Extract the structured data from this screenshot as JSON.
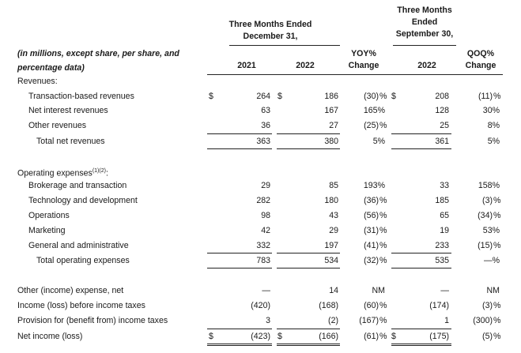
{
  "header": {
    "three_months_dec": "Three Months Ended December 31,",
    "three_months_sep": "Three Months Ended September 30,",
    "note": "(in millions, except share, per share, and percentage data)",
    "col_2021": "2021",
    "col_2022": "2022",
    "col_yoy": "YOY% Change",
    "col_sep_2022": "2022",
    "col_qoq": "QOQ% Change"
  },
  "sections": {
    "revenues": "Revenues:",
    "operating_expenses": "Operating expenses",
    "operating_expenses_sup": "(1)(2)",
    "operating_expenses_colon": ":"
  },
  "rows": [
    {
      "label": "Transaction-based revenues",
      "dol": true,
      "v2021": "264",
      "v2022": "186",
      "yoy": "(30)",
      "yoy_pct": "%",
      "dol_sep": true,
      "vsep": "208",
      "qoq": "(11)",
      "qoq_pct": "%"
    },
    {
      "label": "Net interest revenues",
      "v2021": "63",
      "v2022": "167",
      "yoy": "165%",
      "vsep": "128",
      "qoq": "30%"
    },
    {
      "label": "Other revenues",
      "v2021": "36",
      "v2022": "27",
      "yoy": "(25)",
      "yoy_pct": "%",
      "vsep": "25",
      "qoq": "8%"
    },
    {
      "label": "Total net revenues",
      "v2021": "363",
      "v2022": "380",
      "yoy": "5%",
      "vsep": "361",
      "qoq": "5%"
    },
    {
      "label": "Brokerage and transaction",
      "v2021": "29",
      "v2022": "85",
      "yoy": "193%",
      "vsep": "33",
      "qoq": "158%"
    },
    {
      "label": "Technology and development",
      "v2021": "282",
      "v2022": "180",
      "yoy": "(36)",
      "yoy_pct": "%",
      "vsep": "185",
      "qoq": "(3)",
      "qoq_pct": "%"
    },
    {
      "label": "Operations",
      "v2021": "98",
      "v2022": "43",
      "yoy": "(56)",
      "yoy_pct": "%",
      "vsep": "65",
      "qoq": "(34)",
      "qoq_pct": "%"
    },
    {
      "label": "Marketing",
      "v2021": "42",
      "v2022": "29",
      "yoy": "(31)",
      "yoy_pct": "%",
      "vsep": "19",
      "qoq": "53%"
    },
    {
      "label": "General and administrative",
      "v2021": "332",
      "v2022": "197",
      "yoy": "(41)",
      "yoy_pct": "%",
      "vsep": "233",
      "qoq": "(15)",
      "qoq_pct": "%"
    },
    {
      "label": "Total operating expenses",
      "v2021": "783",
      "v2022": "534",
      "yoy": "(32)",
      "yoy_pct": "%",
      "vsep": "535",
      "qoq": "—%"
    },
    {
      "label": "Other (income) expense, net",
      "v2021": "—",
      "v2022": "14",
      "yoy": "NM",
      "vsep": "—",
      "qoq": "NM"
    },
    {
      "label": "Income (loss) before income taxes",
      "v2021": "(420)",
      "v2022": "(168)",
      "yoy": "(60)",
      "yoy_pct": "%",
      "vsep": "(174)",
      "qoq": "(3)",
      "qoq_pct": "%"
    },
    {
      "label": "Provision for (benefit from) income taxes",
      "v2021": "3",
      "v2022": "(2)",
      "yoy": "(167)",
      "yoy_pct": "%",
      "vsep": "1",
      "qoq": "(300)",
      "qoq_pct": "%"
    },
    {
      "label": "Net income (loss)",
      "dol": true,
      "v2021": "(423)",
      "v2022": "(166)",
      "yoy": "(61)",
      "yoy_pct": "%",
      "dol_sep": true,
      "vsep": "(175)",
      "qoq": "(5)",
      "qoq_pct": "%"
    }
  ],
  "dollar_sign": "$"
}
